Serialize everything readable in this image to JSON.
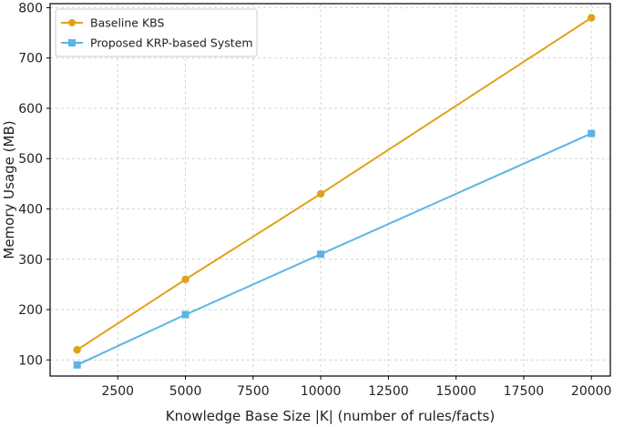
{
  "chart_data": {
    "type": "line",
    "title": "",
    "xlabel": "Knowledge Base Size |K| (number of rules/facts)",
    "ylabel": "Memory Usage (MB)",
    "xlim": [
      0,
      20700
    ],
    "ylim": [
      68,
      808
    ],
    "x_ticks": [
      2500,
      5000,
      7500,
      10000,
      12500,
      15000,
      17500,
      20000
    ],
    "y_ticks": [
      100,
      200,
      300,
      400,
      500,
      600,
      700,
      800
    ],
    "grid": true,
    "legend_position": "top-left",
    "series": [
      {
        "name": "Baseline KBS",
        "color": "#E0A21C",
        "marker": "circle",
        "x": [
          1000,
          5000,
          10000,
          20000
        ],
        "y": [
          120,
          260,
          430,
          780
        ]
      },
      {
        "name": "Proposed KRP-based System",
        "color": "#5BB5E4",
        "marker": "square",
        "x": [
          1000,
          5000,
          10000,
          20000
        ],
        "y": [
          90,
          190,
          310,
          550
        ]
      }
    ]
  }
}
